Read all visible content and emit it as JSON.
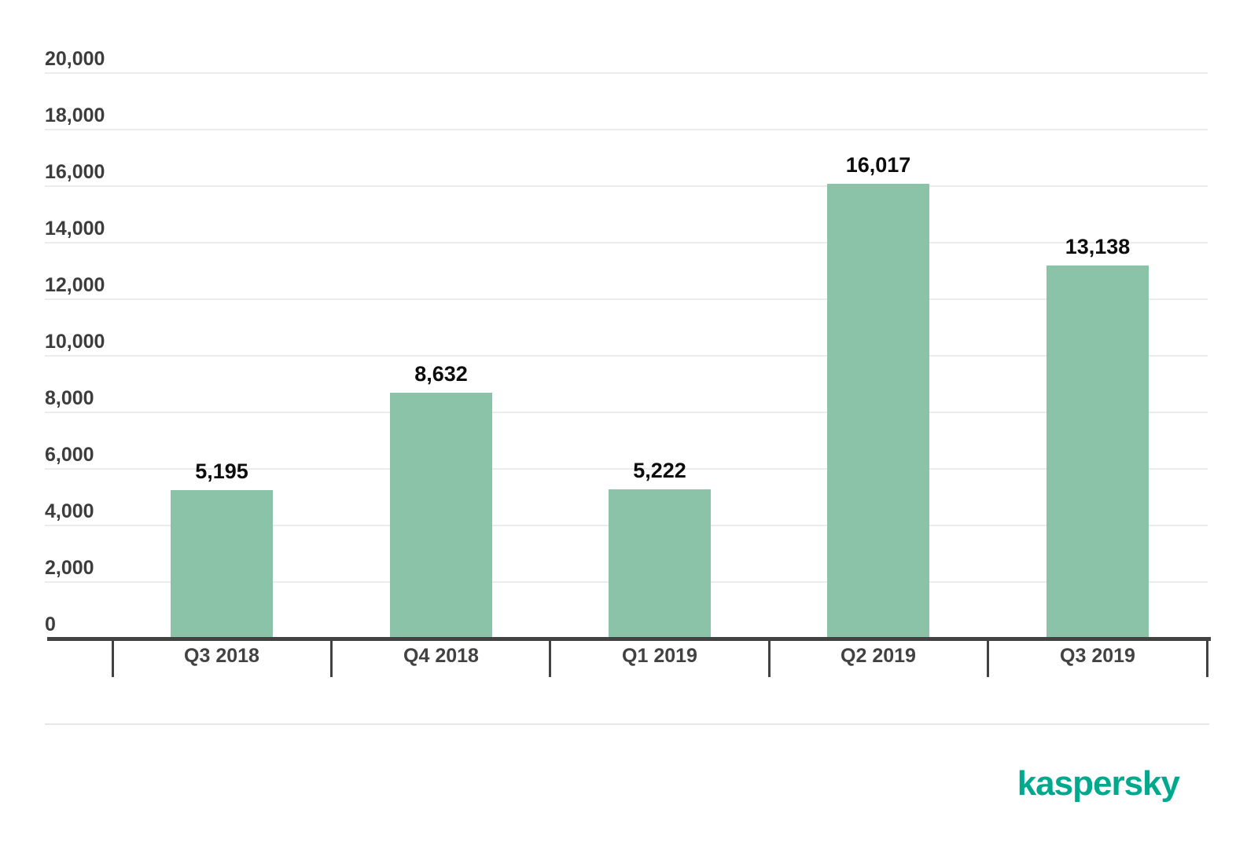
{
  "chart_data": {
    "type": "bar",
    "title": "",
    "xlabel": "",
    "ylabel": "",
    "categories": [
      "Q3 2018",
      "Q4 2018",
      "Q1 2019",
      "Q2 2019",
      "Q3 2019"
    ],
    "values": [
      5195,
      8632,
      5222,
      16017,
      13138
    ],
    "value_labels": [
      "5,195",
      "8,632",
      "5,222",
      "16,017",
      "13,138"
    ],
    "ylim": [
      0,
      20000
    ],
    "ytick_interval": 2000,
    "yticks": [
      0,
      2000,
      4000,
      6000,
      8000,
      10000,
      12000,
      14000,
      16000,
      18000,
      20000
    ],
    "ytick_labels": [
      "0",
      "2,000",
      "4,000",
      "6,000",
      "8,000",
      "10,000",
      "12,000",
      "14,000",
      "16,000",
      "18,000",
      "20,000"
    ],
    "grid": "horizontal",
    "legend": "none",
    "bar_color": "#8BC3A8"
  },
  "colors": {
    "background": "#ffffff",
    "axis": "#424242",
    "gridline": "#ececec",
    "y_label_text": "#3d3d3d",
    "x_label_text": "#424242",
    "value_label_text": "#0d0d0d",
    "separator": "#e7e7e7"
  },
  "branding": {
    "logo_text": "kaspersky",
    "logo_color": "#00A88E"
  }
}
